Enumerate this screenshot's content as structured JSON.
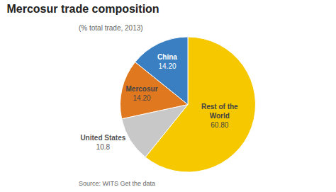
{
  "chart_data": {
    "type": "pie",
    "title": "Mercosur trade composition",
    "subtitle": "(% total trade, 2013)",
    "categories": [
      "Rest of the\nWorld",
      "United States",
      "Mercosur",
      "China"
    ],
    "values": [
      60.8,
      10.8,
      14.2,
      14.2
    ],
    "value_labels": [
      "60.80",
      "10.8",
      "14.20",
      "14.20"
    ],
    "colors": [
      "#F5C800",
      "#C8C8C8",
      "#E07820",
      "#3A7FC1"
    ],
    "data_labels": true,
    "annotations": [
      "Source: WITS Get the data"
    ]
  }
}
